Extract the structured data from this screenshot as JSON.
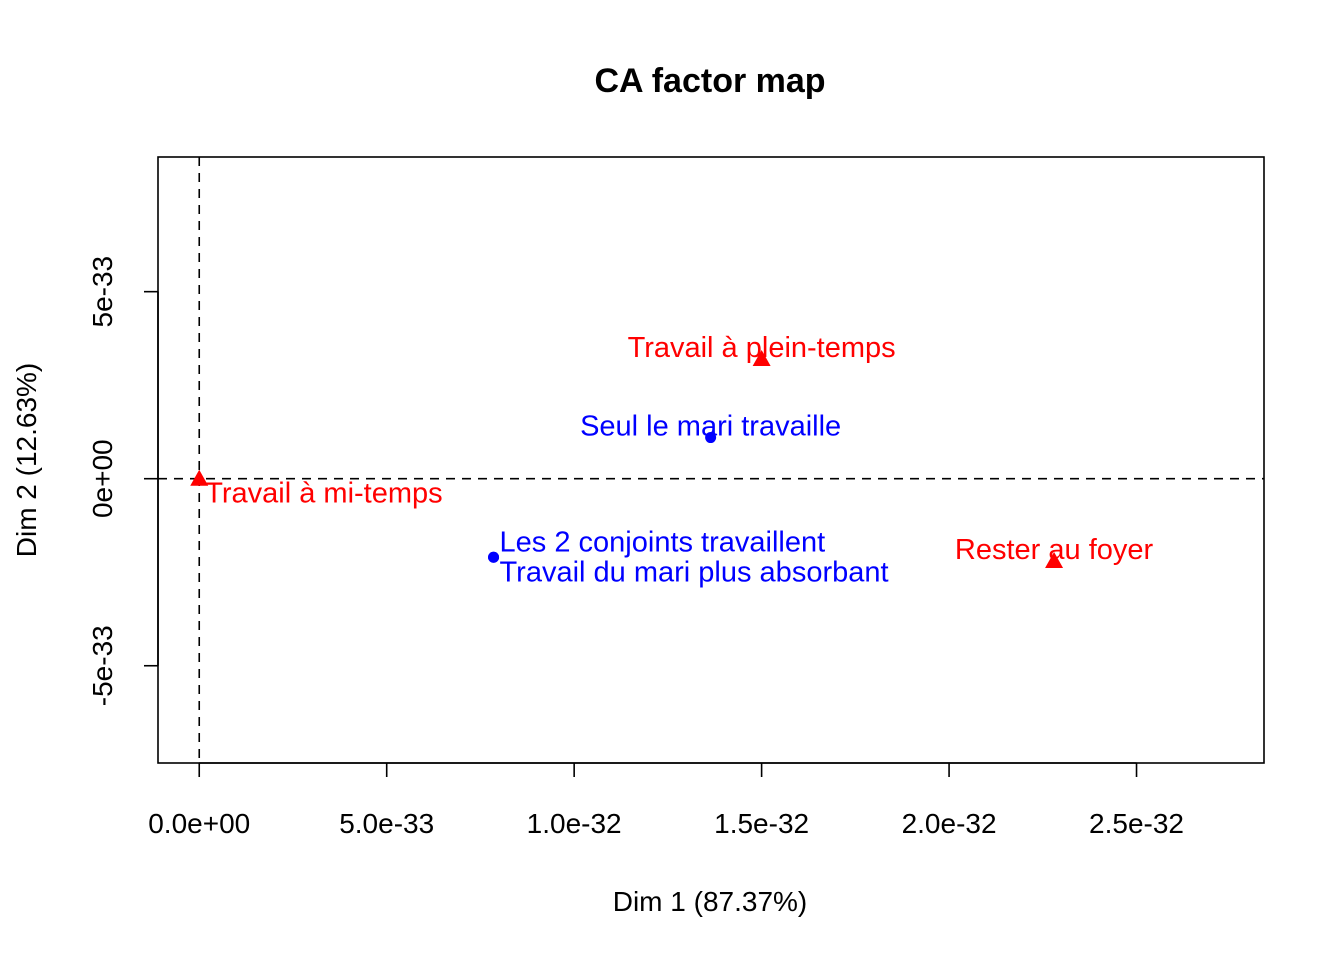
{
  "chart_data": {
    "type": "scatter",
    "title": "CA factor map",
    "xlabel": "Dim 1 (87.37%)",
    "ylabel": "Dim 2 (12.63%)",
    "xlim": [
      -1.1e-33,
      2.84e-32
    ],
    "ylim": [
      -7.6e-33,
      8.6e-33
    ],
    "x_ticks": [
      {
        "value": 0,
        "label": "0.0e+00"
      },
      {
        "value": 5e-33,
        "label": "5.0e-33"
      },
      {
        "value": 1e-32,
        "label": "1.0e-32"
      },
      {
        "value": 1.5e-32,
        "label": "1.5e-32"
      },
      {
        "value": 2e-32,
        "label": "2.0e-32"
      },
      {
        "value": 2.5e-32,
        "label": "2.5e-32"
      }
    ],
    "y_ticks": [
      {
        "value": -5e-33,
        "label": "-5e-33"
      },
      {
        "value": 0,
        "label": "0e+00"
      },
      {
        "value": 5e-33,
        "label": "5e-33"
      }
    ],
    "reference_lines": {
      "x": 0,
      "y": 0,
      "style": "dashed"
    },
    "grid": false,
    "series": [
      {
        "color": "#0000ff",
        "marker": "circle",
        "points": [
          {
            "label": "Seul le mari travaille",
            "x": 1.364e-32,
            "y": 1.1e-33,
            "label_pos": "top"
          },
          {
            "label": "Les 2 conjoints travaillent",
            "x": 7.85e-33,
            "y": -2.1e-33,
            "label_pos": "right"
          },
          {
            "label": "Travail du mari plus absorbant",
            "x": 7.85e-33,
            "y": -2.1e-33,
            "label_pos": "bottom-right"
          }
        ]
      },
      {
        "color": "#ff0000",
        "marker": "triangle",
        "points": [
          {
            "label": "Travail à plein-temps",
            "x": 1.5e-32,
            "y": 3.2e-33,
            "label_pos": "top"
          },
          {
            "label": "Travail à mi-temps",
            "x": 0,
            "y": 0,
            "label_pos": "bottom-right"
          },
          {
            "label": "Rester au foyer",
            "x": 2.28e-32,
            "y": -2.2e-33,
            "label_pos": "top"
          }
        ]
      }
    ]
  }
}
